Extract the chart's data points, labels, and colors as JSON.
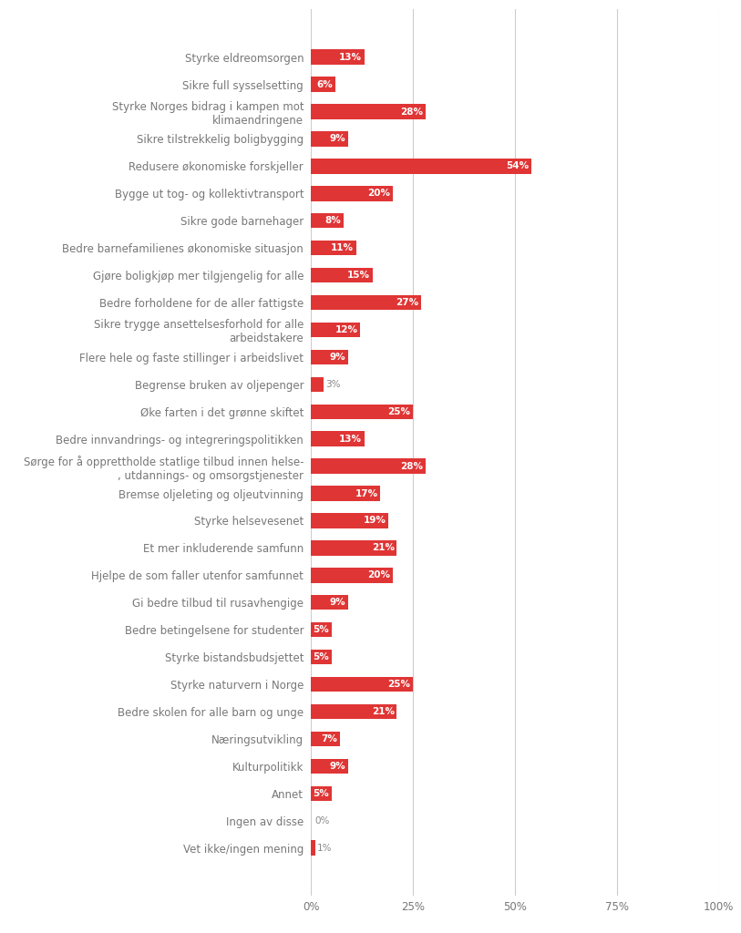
{
  "categories": [
    "Styrke eldreomsorgen",
    "Sikre full sysselsetting",
    "Styrke Norges bidrag i kampen mot\nklimaendringene",
    "Sikre tilstrekkelig boligbygging",
    "Redusere økonomiske forskjeller",
    "Bygge ut tog- og kollektivtransport",
    "Sikre gode barnehager",
    "Bedre barnefamilienes økonomiske situasjon",
    "Gjøre boligkjøp mer tilgjengelig for alle",
    "Bedre forholdene for de aller fattigste",
    "Sikre trygge ansettelsesforhold for alle\narbeidstakere",
    "Flere hele og faste stillinger i arbeidslivet",
    "Begrense bruken av oljepenger",
    "Øke farten i det grønne skiftet",
    "Bedre innvandrings- og integreringspolitikken",
    "Sørge for å opprettholde statlige tilbud innen helse-\n, utdannings- og omsorgstjenester",
    "Bremse oljeleting og oljeutvinning",
    "Styrke helsevesenet",
    "Et mer inkluderende samfunn",
    "Hjelpe de som faller utenfor samfunnet",
    "Gi bedre tilbud til rusavhengige",
    "Bedre betingelsene for studenter",
    "Styrke bistandsbudsjettet",
    "Styrke naturvern i Norge",
    "Bedre skolen for alle barn og unge",
    "Næringsutvikling",
    "Kulturpolitikk",
    "Annet",
    "Ingen av disse",
    "Vet ikke/ingen mening"
  ],
  "values": [
    13,
    6,
    28,
    9,
    54,
    20,
    8,
    11,
    15,
    27,
    12,
    9,
    3,
    25,
    13,
    28,
    17,
    19,
    21,
    20,
    9,
    5,
    5,
    25,
    21,
    7,
    9,
    5,
    0,
    1
  ],
  "bar_color": "#e03535",
  "label_color_inside": "#ffffff",
  "label_color_outside": "#888888",
  "background_color": "#ffffff",
  "grid_color": "#cccccc",
  "text_color": "#777777",
  "xlim": [
    0,
    100
  ],
  "xticks": [
    0,
    25,
    50,
    75,
    100
  ],
  "xticklabels": [
    "0%",
    "25%",
    "50%",
    "75%",
    "100%"
  ],
  "bar_height": 0.55,
  "label_fontsize": 7.5,
  "tick_fontsize": 8.5,
  "ylabel_fontsize": 8.5,
  "inside_threshold": 4
}
